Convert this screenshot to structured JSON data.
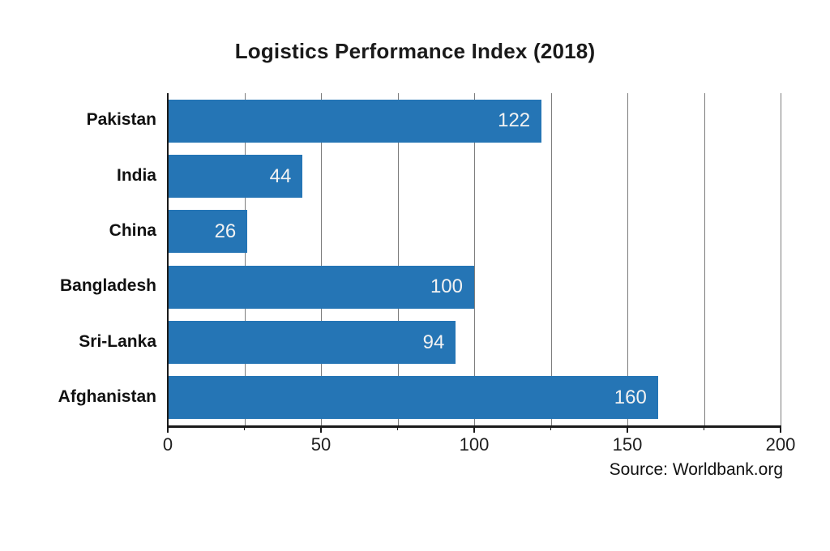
{
  "title": "Logistics Performance Index (2018)",
  "source_note": "Source: Worldbank.org",
  "chart_data": {
    "type": "bar",
    "orientation": "horizontal",
    "title": "Logistics Performance Index (2018)",
    "categories": [
      "Pakistan",
      "India",
      "China",
      "Bangladesh",
      "Sri-Lanka",
      "Afghanistan"
    ],
    "values": [
      122,
      44,
      26,
      100,
      94,
      160
    ],
    "xlabel": "",
    "ylabel": "",
    "xlim": [
      0,
      200
    ],
    "x_tick_labels": [
      0,
      50,
      100,
      150,
      200
    ],
    "gridline_step": 25,
    "grid": true,
    "legend": false,
    "bar_color": "#2575b5",
    "value_label_color": "#f2f2f2",
    "annotation": "Source: Worldbank.org"
  }
}
